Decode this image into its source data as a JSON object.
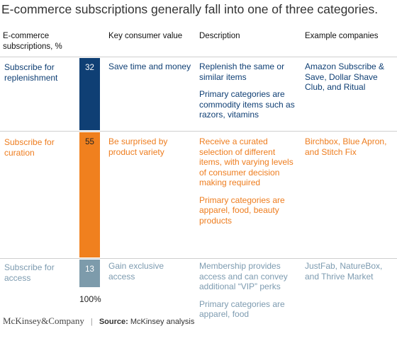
{
  "title": "E-commerce subscriptions generally fall into one of three categories.",
  "headers": {
    "col0_line1": "E-commerce",
    "col0_line2": "subscriptions, %",
    "col1": "Key consumer value",
    "col2": "Description",
    "col3": "Example companies"
  },
  "rows": [
    {
      "label": "Subscribe for replenishment",
      "value": 32,
      "value_label": "32",
      "key_value": "Save time and money",
      "description": [
        "Replenish the same or similar items",
        "Primary categories are commodity items such as razors, vitamins"
      ],
      "examples": "Amazon Subscribe & Save, Dollar Shave Club, and Ritual"
    },
    {
      "label": "Subscribe for curation",
      "value": 55,
      "value_label": "55",
      "key_value": "Be surprised by product variety",
      "description": [
        "Receive a curated selection of different items, with varying levels of consumer decision making required",
        "Primary categories are apparel, food, beauty products"
      ],
      "examples": "Birchbox, Blue Apron, and Stitch Fix"
    },
    {
      "label": "Subscribe for access",
      "value": 13,
      "value_label": "13",
      "key_value": "Gain exclusive access",
      "description": [
        "Membership provides access and can convey additional “VIP” perks",
        "Primary categories are apparel, food"
      ],
      "examples": "JustFab, NatureBox, and Thrive Market"
    }
  ],
  "total_label": "100%",
  "footer": {
    "logo": "McKinsey&Company",
    "source_label": "Source:",
    "source_text": "McKinsey analysis"
  },
  "colors": {
    "replenishment": "#0f3f74",
    "curation": "#f0801e",
    "access": "#7d9bab"
  },
  "chart_data": {
    "type": "bar",
    "stacked": true,
    "orientation": "vertical",
    "categories": [
      "Subscribe for replenishment",
      "Subscribe for curation",
      "Subscribe for access"
    ],
    "values": [
      32,
      55,
      13
    ],
    "ylabel": "E-commerce subscriptions, %",
    "total": "100%"
  }
}
